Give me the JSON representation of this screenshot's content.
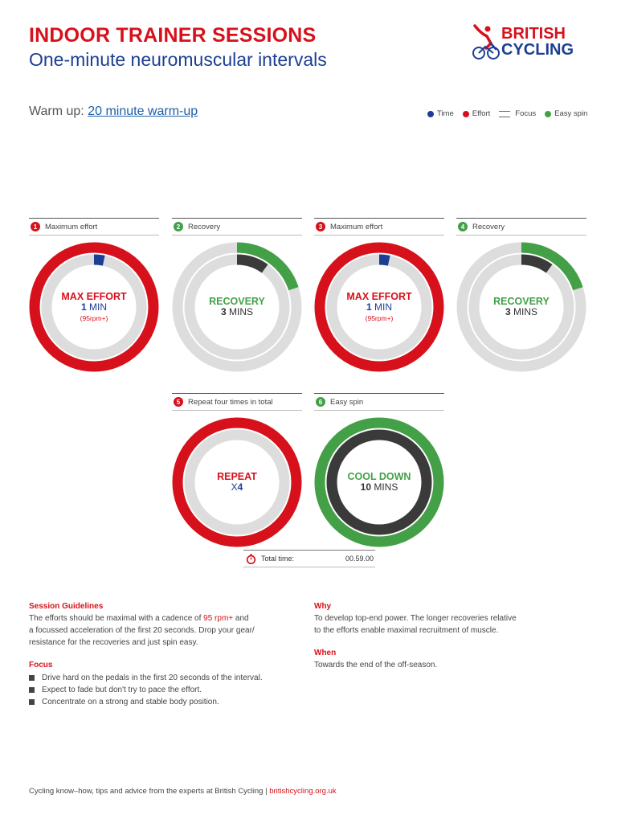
{
  "header": {
    "title": "INDOOR TRAINER SESSIONS",
    "subtitle": "One-minute neuromuscular intervals",
    "logo_line1": "BRITISH",
    "logo_line2": "CYCLING"
  },
  "warmup": {
    "label": "Warm up:",
    "link": "20 minute warm-up"
  },
  "legend": {
    "time": "Time",
    "effort": "Effort",
    "focus": "Focus",
    "easy_spin": "Easy spin"
  },
  "colors": {
    "effort": "#d7111b",
    "time": "#1c3f94",
    "easy_spin": "#43a047",
    "focus": "#3a3a3a",
    "track": "#dddddd"
  },
  "steps": [
    {
      "num": "1",
      "head": "Maximum effort",
      "main": "MAX EFFORT",
      "sub_num": "1",
      "sub_unit": "MIN",
      "small": "(95rpm+)"
    },
    {
      "num": "2",
      "head": "Recovery",
      "main": "RECOVERY",
      "sub_num": "3",
      "sub_unit": "MINS"
    },
    {
      "num": "3",
      "head": "Maximum effort",
      "main": "MAX EFFORT",
      "sub_num": "1",
      "sub_unit": "MIN",
      "small": "(95rpm+)"
    },
    {
      "num": "4",
      "head": "Recovery",
      "main": "RECOVERY",
      "sub_num": "3",
      "sub_unit": "MINS"
    },
    {
      "num": "5",
      "head": "Repeat four times in total",
      "main": "REPEAT",
      "sub_num": "4",
      "sub_unit": "X"
    },
    {
      "num": "6",
      "head": "Easy spin",
      "main": "COOL DOWN",
      "sub_num": "10",
      "sub_unit": "MINS"
    }
  ],
  "rings": [
    {
      "outer_color": "#d7111b",
      "outer_fraction": 1.0,
      "inner_color": "#1c3f94",
      "inner_fraction": 0.0333
    },
    {
      "outer_color": "#43a047",
      "outer_fraction": 0.2,
      "inner_color": "#3a3a3a",
      "inner_fraction": 0.1
    },
    {
      "outer_color": "#d7111b",
      "outer_fraction": 1.0,
      "inner_color": "#1c3f94",
      "inner_fraction": 0.0333
    },
    {
      "outer_color": "#43a047",
      "outer_fraction": 0.2,
      "inner_color": "#3a3a3a",
      "inner_fraction": 0.1
    },
    {
      "outer_color": "#d7111b",
      "outer_fraction": 1.0,
      "inner_color": "#d7111b",
      "inner_fraction": 0.0
    },
    {
      "outer_color": "#43a047",
      "outer_fraction": 1.0,
      "inner_color": "#3a3a3a",
      "inner_fraction": 1.0
    }
  ],
  "total": {
    "label": "Total time:",
    "value": "00.59.00"
  },
  "guidelines": {
    "heading": "Session Guidelines",
    "line1_a": "The efforts should be maximal with a cadence of ",
    "line1_hl": "95 rpm+",
    "line1_b": " and",
    "line2": "a focussed acceleration of the first 20 seconds. Drop your gear/",
    "line3": "resistance for the recoveries and just spin easy."
  },
  "focus": {
    "heading": "Focus",
    "items": [
      "Drive hard on the pedals in the first 20 seconds of the interval.",
      "Expect to fade but don't try to pace the effort.",
      "Concentrate on a strong and stable body position."
    ]
  },
  "why": {
    "heading": "Why",
    "line1": "To develop top-end power. The longer recoveries relative",
    "line2": "to the efforts enable maximal recruitment of muscle."
  },
  "when": {
    "heading": "When",
    "text": "Towards the end of the off-season."
  },
  "footer": {
    "text": "Cycling know–how, tips and advice from the experts at British Cycling | ",
    "link": "britishcycling.org.uk"
  }
}
